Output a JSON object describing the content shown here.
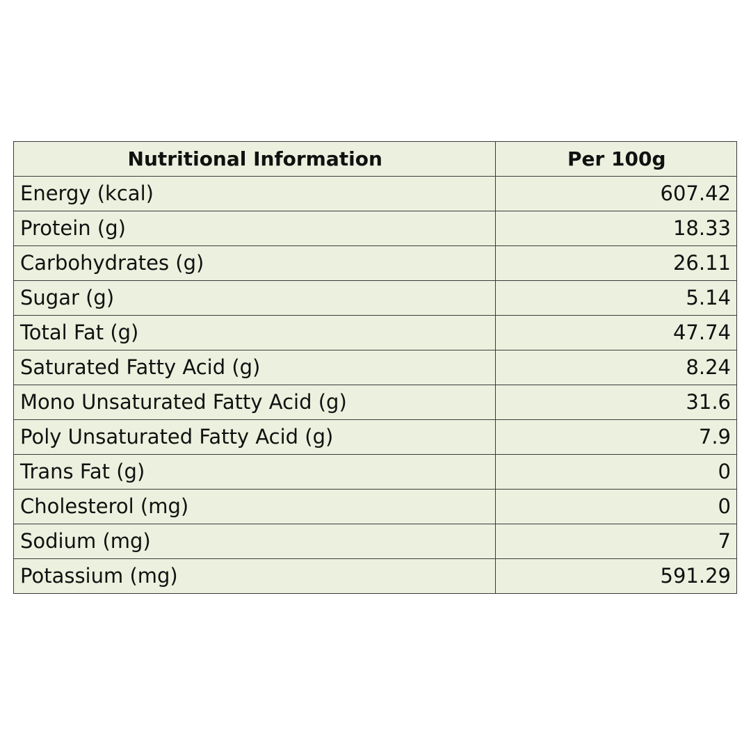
{
  "table": {
    "headers": [
      "Nutritional Information",
      "Per 100g"
    ],
    "rows": [
      {
        "label": "Energy (kcal)",
        "value": "607.42"
      },
      {
        "label": "Protein (g)",
        "value": "18.33"
      },
      {
        "label": "Carbohydrates (g)",
        "value": "26.11"
      },
      {
        "label": "Sugar (g)",
        "value": "5.14"
      },
      {
        "label": "Total Fat (g)",
        "value": "47.74"
      },
      {
        "label": "Saturated Fatty Acid (g)",
        "value": "8.24"
      },
      {
        "label": "Mono Unsaturated Fatty Acid (g)",
        "value": "31.6"
      },
      {
        "label": "Poly Unsaturated Fatty Acid (g)",
        "value": "7.9"
      },
      {
        "label": "Trans Fat (g)",
        "value": "0"
      },
      {
        "label": "Cholesterol (mg)",
        "value": "0"
      },
      {
        "label": "Sodium (mg)",
        "value": "7"
      },
      {
        "label": "Potassium (mg)",
        "value": "591.29"
      }
    ]
  },
  "colors": {
    "cell_background": "#ebf1de",
    "border": "#3a3a3a",
    "text": "#111111",
    "page_background": "#ffffff"
  }
}
